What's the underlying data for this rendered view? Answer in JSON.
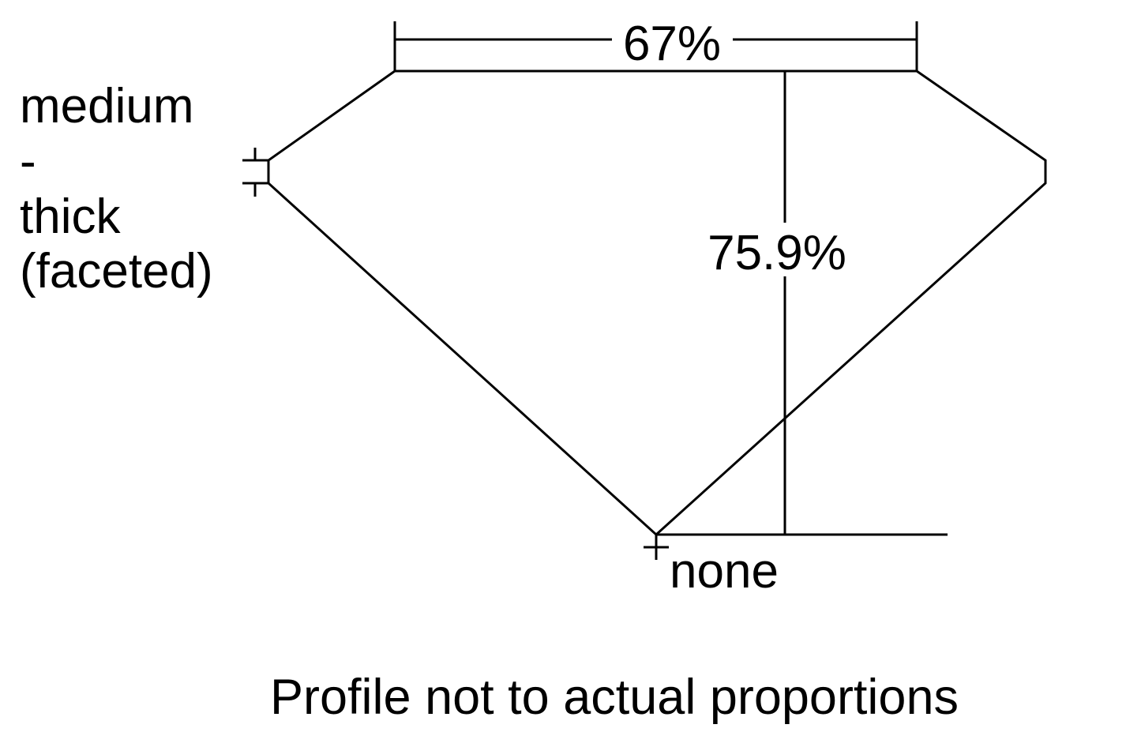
{
  "diagram": {
    "table_label": "67%",
    "depth_label": "75.9%",
    "girdle_label_lines": [
      "medium",
      "-",
      "thick",
      "(faceted)"
    ],
    "culet_label": "none",
    "footnote": "Profile not to actual proportions",
    "line_color": "#000000"
  }
}
